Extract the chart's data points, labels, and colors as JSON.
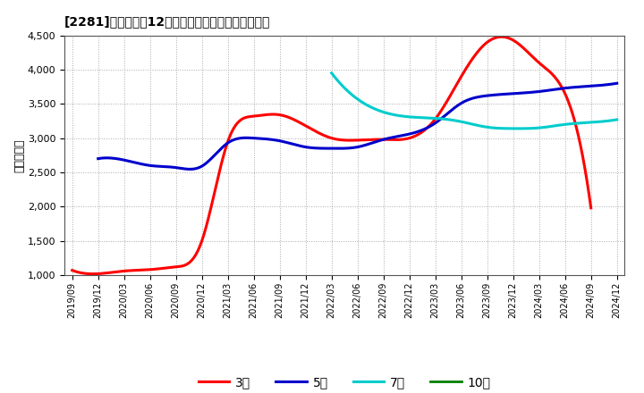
{
  "title": "[2281]　経常利益12か月移動合計の標準偏差の推移",
  "ylabel": "（百万円）",
  "ylim": [
    1000,
    4500
  ],
  "yticks": [
    1000,
    1500,
    2000,
    2500,
    3000,
    3500,
    4000,
    4500
  ],
  "background_color": "#ffffff",
  "plot_bg_color": "#ffffff",
  "grid_color": "#aaaaaa",
  "series": {
    "3年": {
      "color": "#ff0000",
      "data": [
        [
          "2019/09",
          1070
        ],
        [
          "2019/12",
          1020
        ],
        [
          "2020/03",
          1060
        ],
        [
          "2020/06",
          1080
        ],
        [
          "2020/09",
          1120
        ],
        [
          "2020/12",
          1500
        ],
        [
          "2021/03",
          2950
        ],
        [
          "2021/06",
          3320
        ],
        [
          "2021/09",
          3340
        ],
        [
          "2021/12",
          3180
        ],
        [
          "2022/03",
          3000
        ],
        [
          "2022/06",
          2970
        ],
        [
          "2022/09",
          2980
        ],
        [
          "2022/12",
          3000
        ],
        [
          "2023/03",
          3280
        ],
        [
          "2023/06",
          3900
        ],
        [
          "2023/09",
          4400
        ],
        [
          "2023/12",
          4430
        ],
        [
          "2024/03",
          4100
        ],
        [
          "2024/06",
          3650
        ],
        [
          "2024/09",
          1980
        ],
        [
          "2024/12",
          null
        ]
      ]
    },
    "5年": {
      "color": "#0000cc",
      "data": [
        [
          "2019/09",
          null
        ],
        [
          "2019/12",
          2700
        ],
        [
          "2020/03",
          2680
        ],
        [
          "2020/06",
          2600
        ],
        [
          "2020/09",
          2570
        ],
        [
          "2020/12",
          2590
        ],
        [
          "2021/03",
          2930
        ],
        [
          "2021/06",
          3000
        ],
        [
          "2021/09",
          2960
        ],
        [
          "2021/12",
          2870
        ],
        [
          "2022/03",
          2850
        ],
        [
          "2022/06",
          2870
        ],
        [
          "2022/09",
          2980
        ],
        [
          "2022/12",
          3060
        ],
        [
          "2023/03",
          3220
        ],
        [
          "2023/06",
          3510
        ],
        [
          "2023/09",
          3620
        ],
        [
          "2023/12",
          3650
        ],
        [
          "2024/03",
          3680
        ],
        [
          "2024/06",
          3730
        ],
        [
          "2024/09",
          3760
        ],
        [
          "2024/12",
          3800
        ]
      ]
    },
    "7年": {
      "color": "#00cccc",
      "data": [
        [
          "2019/09",
          null
        ],
        [
          "2019/12",
          null
        ],
        [
          "2020/03",
          null
        ],
        [
          "2020/06",
          null
        ],
        [
          "2020/09",
          null
        ],
        [
          "2020/12",
          null
        ],
        [
          "2021/03",
          null
        ],
        [
          "2021/06",
          null
        ],
        [
          "2021/09",
          null
        ],
        [
          "2021/12",
          null
        ],
        [
          "2022/03",
          3950
        ],
        [
          "2022/06",
          3570
        ],
        [
          "2022/09",
          3380
        ],
        [
          "2022/12",
          3310
        ],
        [
          "2023/03",
          3290
        ],
        [
          "2023/06",
          3240
        ],
        [
          "2023/09",
          3160
        ],
        [
          "2023/12",
          3140
        ],
        [
          "2024/03",
          3150
        ],
        [
          "2024/06",
          3200
        ],
        [
          "2024/09",
          3230
        ],
        [
          "2024/12",
          3270
        ]
      ]
    },
    "10年": {
      "color": "#008000",
      "linewidth": 2.0,
      "data": [
        [
          "2019/09",
          null
        ],
        [
          "2019/12",
          null
        ],
        [
          "2020/03",
          null
        ],
        [
          "2020/06",
          null
        ],
        [
          "2020/09",
          null
        ],
        [
          "2020/12",
          null
        ],
        [
          "2021/03",
          null
        ],
        [
          "2021/06",
          null
        ],
        [
          "2021/09",
          null
        ],
        [
          "2021/12",
          null
        ],
        [
          "2022/03",
          null
        ],
        [
          "2022/06",
          null
        ],
        [
          "2022/09",
          null
        ],
        [
          "2022/12",
          null
        ],
        [
          "2023/03",
          null
        ],
        [
          "2023/06",
          null
        ],
        [
          "2023/09",
          null
        ],
        [
          "2023/12",
          null
        ],
        [
          "2024/03",
          null
        ],
        [
          "2024/06",
          null
        ],
        [
          "2024/09",
          null
        ],
        [
          "2024/12",
          null
        ]
      ]
    }
  },
  "xtick_labels": [
    "2019/09",
    "2019/12",
    "2020/03",
    "2020/06",
    "2020/09",
    "2020/12",
    "2021/03",
    "2021/06",
    "2021/09",
    "2021/12",
    "2022/03",
    "2022/06",
    "2022/09",
    "2022/12",
    "2023/03",
    "2023/06",
    "2023/09",
    "2023/12",
    "2024/03",
    "2024/06",
    "2024/09",
    "2024/12"
  ],
  "legend_labels": [
    "3年",
    "5年",
    "7年",
    "10年"
  ]
}
